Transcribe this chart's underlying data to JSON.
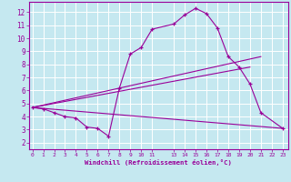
{
  "xlabel": "Windchill (Refroidissement éolien,°C)",
  "bg_color": "#c5e8f0",
  "line_color": "#990099",
  "grid_color": "#ffffff",
  "x_ticks": [
    0,
    1,
    2,
    3,
    4,
    5,
    6,
    7,
    8,
    9,
    10,
    11,
    13,
    14,
    15,
    16,
    17,
    18,
    19,
    20,
    21,
    22,
    23
  ],
  "y_ticks": [
    2,
    3,
    4,
    5,
    6,
    7,
    8,
    9,
    10,
    11,
    12
  ],
  "ylim": [
    1.5,
    12.8
  ],
  "xlim": [
    -0.3,
    23.5
  ],
  "series": [
    {
      "x": [
        0,
        1,
        2,
        3,
        4,
        5,
        6,
        7,
        8,
        9,
        10,
        11,
        13,
        14,
        15,
        16,
        17,
        18,
        19,
        20,
        21,
        23
      ],
      "y": [
        4.7,
        4.6,
        4.3,
        4.0,
        3.9,
        3.2,
        3.1,
        2.5,
        6.2,
        8.8,
        9.3,
        10.7,
        11.1,
        11.8,
        12.3,
        11.9,
        10.8,
        8.6,
        7.8,
        6.5,
        4.3,
        3.1
      ],
      "marker": "+"
    },
    {
      "x": [
        0,
        23
      ],
      "y": [
        4.7,
        3.1
      ],
      "marker": null
    },
    {
      "x": [
        0,
        20
      ],
      "y": [
        4.7,
        7.8
      ],
      "marker": null
    },
    {
      "x": [
        0,
        21
      ],
      "y": [
        4.7,
        8.6
      ],
      "marker": null
    }
  ]
}
